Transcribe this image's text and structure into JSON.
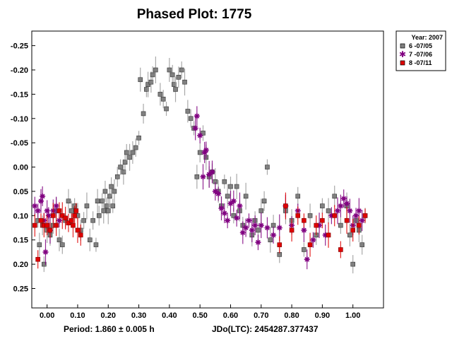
{
  "chart_data": {
    "type": "scatter",
    "title": "Phased Plot: 1775",
    "xlabel": "",
    "ylabel": "",
    "xlim": [
      -0.05,
      1.1
    ],
    "ylim": [
      -0.28,
      0.29
    ],
    "y_inverted": true,
    "x_ticks": [
      "0.00",
      "0.10",
      "0.20",
      "0.30",
      "0.40",
      "0.50",
      "0.60",
      "0.70",
      "0.80",
      "0.90",
      "1.00"
    ],
    "x_tick_values": [
      0.0,
      0.1,
      0.2,
      0.3,
      0.4,
      0.5,
      0.6,
      0.7,
      0.8,
      0.9,
      1.0
    ],
    "y_ticks": [
      "-0.25",
      "-0.20",
      "-0.15",
      "-0.10",
      "-0.05",
      "0.00",
      "0.05",
      "0.10",
      "0.15",
      "0.20",
      "0.25"
    ],
    "y_tick_values": [
      -0.25,
      -0.2,
      -0.15,
      -0.1,
      -0.05,
      0.0,
      0.05,
      0.1,
      0.15,
      0.2,
      0.25
    ],
    "grid": false,
    "legend": {
      "placement": "top-right",
      "header": "Year: 2007",
      "entries": [
        "6 -07/05",
        "7 -07/06",
        "8 -07/11"
      ]
    },
    "series": [
      {
        "name": "6 -07/05",
        "marker": "square",
        "color": "#808080",
        "points": [
          [
            -0.03,
            0.11
          ],
          [
            -0.025,
            0.16
          ],
          [
            -0.015,
            0.12
          ],
          [
            -0.01,
            0.2
          ],
          [
            0.0,
            0.13
          ],
          [
            0.01,
            0.14
          ],
          [
            0.02,
            0.12
          ],
          [
            0.03,
            0.09
          ],
          [
            0.04,
            0.15
          ],
          [
            0.05,
            0.16
          ],
          [
            0.06,
            0.11
          ],
          [
            0.07,
            0.07
          ],
          [
            0.08,
            0.09
          ],
          [
            0.09,
            0.08
          ],
          [
            0.1,
            0.1
          ],
          [
            0.11,
            0.13
          ],
          [
            0.12,
            0.11
          ],
          [
            0.13,
            0.08
          ],
          [
            0.14,
            0.15
          ],
          [
            0.15,
            0.11
          ],
          [
            0.16,
            0.16
          ],
          [
            0.165,
            0.07
          ],
          [
            0.17,
            0.1
          ],
          [
            0.18,
            0.07
          ],
          [
            0.185,
            0.09
          ],
          [
            0.19,
            0.05
          ],
          [
            0.195,
            0.08
          ],
          [
            0.2,
            0.09
          ],
          [
            0.205,
            0.06
          ],
          [
            0.21,
            0.04
          ],
          [
            0.215,
            0.08
          ],
          [
            0.22,
            0.05
          ],
          [
            0.23,
            0.02
          ],
          [
            0.24,
            0.0
          ],
          [
            0.25,
            0.01
          ],
          [
            0.255,
            -0.01
          ],
          [
            0.26,
            -0.03
          ],
          [
            0.27,
            -0.02
          ],
          [
            0.28,
            -0.03
          ],
          [
            0.29,
            -0.04
          ],
          [
            0.3,
            -0.06
          ],
          [
            0.305,
            -0.18
          ],
          [
            0.315,
            -0.11
          ],
          [
            0.325,
            -0.16
          ],
          [
            0.33,
            -0.17
          ],
          [
            0.34,
            -0.175
          ],
          [
            0.345,
            -0.19
          ],
          [
            0.355,
            -0.2
          ],
          [
            0.37,
            -0.15
          ],
          [
            0.38,
            -0.14
          ],
          [
            0.39,
            -0.12
          ],
          [
            0.4,
            -0.2
          ],
          [
            0.41,
            -0.19
          ],
          [
            0.415,
            -0.17
          ],
          [
            0.42,
            -0.16
          ],
          [
            0.43,
            -0.185
          ],
          [
            0.44,
            -0.2
          ],
          [
            0.45,
            -0.175
          ],
          [
            0.46,
            -0.115
          ],
          [
            0.47,
            -0.1
          ],
          [
            0.48,
            -0.08
          ],
          [
            0.49,
            0.02
          ],
          [
            0.5,
            -0.03
          ],
          [
            0.51,
            -0.07
          ],
          [
            0.52,
            -0.02
          ],
          [
            0.53,
            0.02
          ],
          [
            0.54,
            0.01
          ],
          [
            0.55,
            0.03
          ],
          [
            0.56,
            0.05
          ],
          [
            0.57,
            0.08
          ],
          [
            0.58,
            0.03
          ],
          [
            0.59,
            0.06
          ],
          [
            0.6,
            0.04
          ],
          [
            0.61,
            0.1
          ],
          [
            0.62,
            0.04
          ],
          [
            0.63,
            0.09
          ],
          [
            0.64,
            0.12
          ],
          [
            0.65,
            0.06
          ],
          [
            0.67,
            0.14
          ],
          [
            0.68,
            0.11
          ],
          [
            0.69,
            0.13
          ],
          [
            0.7,
            0.09
          ],
          [
            0.71,
            0.07
          ],
          [
            0.72,
            0.0
          ],
          [
            0.73,
            0.15
          ],
          [
            0.74,
            0.12
          ],
          [
            0.76,
            0.18
          ],
          [
            0.78,
            0.09
          ],
          [
            0.8,
            0.11
          ],
          [
            0.82,
            0.06
          ],
          [
            0.84,
            0.17
          ],
          [
            0.86,
            0.1
          ],
          [
            0.88,
            0.14
          ],
          [
            0.9,
            0.08
          ],
          [
            0.92,
            0.09
          ],
          [
            0.94,
            0.06
          ],
          [
            0.96,
            0.12
          ],
          [
            0.98,
            0.08
          ],
          [
            0.99,
            0.14
          ],
          [
            1.0,
            0.2
          ],
          [
            1.01,
            0.11
          ],
          [
            1.02,
            0.13
          ],
          [
            1.03,
            0.16
          ],
          [
            1.04,
            0.1
          ]
        ]
      },
      {
        "name": "7 -07/06",
        "marker": "asterisk",
        "color": "#800080",
        "points": [
          [
            -0.04,
            0.08
          ],
          [
            -0.03,
            0.09
          ],
          [
            -0.02,
            0.07
          ],
          [
            -0.015,
            0.06
          ],
          [
            -0.01,
            0.11
          ],
          [
            -0.005,
            0.175
          ],
          [
            0.0,
            0.09
          ],
          [
            0.005,
            0.1
          ],
          [
            0.01,
            0.13
          ],
          [
            0.02,
            0.09
          ],
          [
            0.03,
            0.08
          ],
          [
            0.04,
            0.11
          ],
          [
            0.485,
            -0.08
          ],
          [
            0.49,
            -0.105
          ],
          [
            0.5,
            -0.065
          ],
          [
            0.51,
            0.02
          ],
          [
            0.515,
            -0.03
          ],
          [
            0.52,
            -0.035
          ],
          [
            0.53,
            0.015
          ],
          [
            0.54,
            0.01
          ],
          [
            0.55,
            0.05
          ],
          [
            0.56,
            0.055
          ],
          [
            0.57,
            0.085
          ],
          [
            0.58,
            0.095
          ],
          [
            0.59,
            0.11
          ],
          [
            0.6,
            0.075
          ],
          [
            0.61,
            0.07
          ],
          [
            0.62,
            0.105
          ],
          [
            0.63,
            0.08
          ],
          [
            0.64,
            0.135
          ],
          [
            0.65,
            0.125
          ],
          [
            0.66,
            0.11
          ],
          [
            0.67,
            0.13
          ],
          [
            0.68,
            0.12
          ],
          [
            0.69,
            0.155
          ],
          [
            0.7,
            0.12
          ],
          [
            0.72,
            0.125
          ],
          [
            0.74,
            0.14
          ],
          [
            0.76,
            0.125
          ],
          [
            0.78,
            0.08
          ],
          [
            0.8,
            0.12
          ],
          [
            0.82,
            0.09
          ],
          [
            0.84,
            0.13
          ],
          [
            0.85,
            0.19
          ],
          [
            0.87,
            0.15
          ],
          [
            0.89,
            0.12
          ],
          [
            0.91,
            0.14
          ],
          [
            0.93,
            0.1
          ],
          [
            0.95,
            0.09
          ],
          [
            0.96,
            0.08
          ],
          [
            0.97,
            0.065
          ],
          [
            0.98,
            0.075
          ],
          [
            0.99,
            0.09
          ],
          [
            1.0,
            0.12
          ],
          [
            1.01,
            0.1
          ],
          [
            1.02,
            0.09
          ],
          [
            1.03,
            0.11
          ]
        ]
      },
      {
        "name": "8 -07/11",
        "marker": "square",
        "color": "#e00000",
        "points": [
          [
            -0.04,
            0.12
          ],
          [
            -0.03,
            0.19
          ],
          [
            -0.02,
            0.11
          ],
          [
            -0.01,
            0.12
          ],
          [
            0.0,
            0.12
          ],
          [
            0.01,
            0.13
          ],
          [
            0.02,
            0.1
          ],
          [
            0.03,
            0.12
          ],
          [
            0.04,
            0.09
          ],
          [
            0.05,
            0.1
          ],
          [
            0.06,
            0.105
          ],
          [
            0.07,
            0.115
          ],
          [
            0.08,
            0.11
          ],
          [
            0.085,
            0.12
          ],
          [
            0.09,
            0.1
          ],
          [
            0.095,
            0.09
          ],
          [
            0.1,
            0.13
          ],
          [
            0.11,
            0.14
          ],
          [
            0.76,
            0.16
          ],
          [
            0.78,
            0.08
          ],
          [
            0.8,
            0.13
          ],
          [
            0.82,
            0.1
          ],
          [
            0.84,
            0.11
          ],
          [
            0.86,
            0.16
          ],
          [
            0.88,
            0.12
          ],
          [
            0.9,
            0.11
          ],
          [
            0.92,
            0.14
          ],
          [
            0.94,
            0.1
          ],
          [
            0.96,
            0.17
          ],
          [
            0.98,
            0.11
          ],
          [
            1.0,
            0.13
          ],
          [
            1.02,
            0.12
          ],
          [
            1.04,
            0.1
          ]
        ]
      }
    ]
  },
  "footer": {
    "period": "Period: 1.860 ± 0.005 h",
    "jdo": "JDo(LTC): 2454287.377437"
  }
}
